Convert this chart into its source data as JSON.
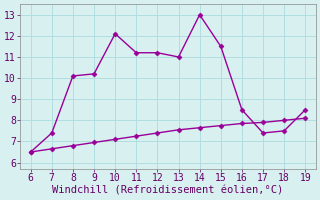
{
  "x_upper": [
    6,
    7,
    8,
    9,
    10,
    11,
    12,
    13,
    14,
    15,
    16,
    17,
    18,
    19
  ],
  "y_upper": [
    6.5,
    7.4,
    10.1,
    10.2,
    12.1,
    11.2,
    11.2,
    11.0,
    13.0,
    11.5,
    8.5,
    7.4,
    7.5,
    8.5
  ],
  "x_lower": [
    6,
    7,
    8,
    9,
    10,
    11,
    12,
    13,
    14,
    15,
    16,
    17,
    18,
    19
  ],
  "y_lower": [
    6.5,
    6.65,
    6.8,
    6.95,
    7.1,
    7.25,
    7.4,
    7.55,
    7.65,
    7.75,
    7.85,
    7.9,
    8.0,
    8.1
  ],
  "line_color": "#990099",
  "bg_color": "#d8f0f0",
  "grid_color": "#b0dede",
  "xlabel": "Windchill (Refroidissement éolien,°C)",
  "xlim": [
    5.5,
    19.5
  ],
  "ylim": [
    5.7,
    13.5
  ],
  "xticks": [
    6,
    7,
    8,
    9,
    10,
    11,
    12,
    13,
    14,
    15,
    16,
    17,
    18,
    19
  ],
  "yticks": [
    6,
    7,
    8,
    9,
    10,
    11,
    12,
    13
  ],
  "marker": "D",
  "marker_size": 2.5,
  "line_width": 1.0,
  "xlabel_fontsize": 7.5,
  "tick_fontsize": 7
}
